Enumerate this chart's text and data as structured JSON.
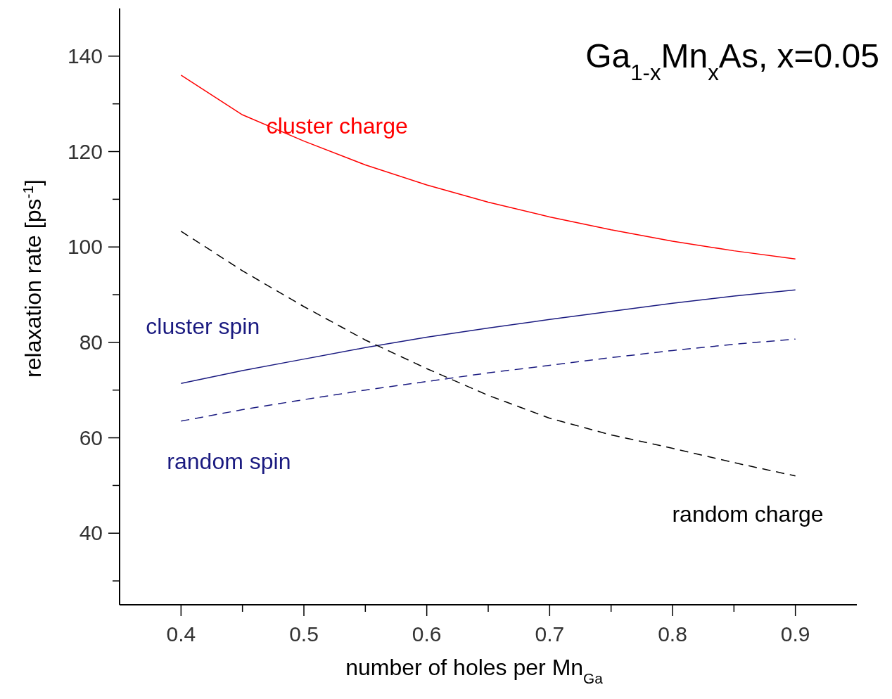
{
  "chart_data": {
    "type": "line",
    "title": "Ga$_{1-x}$Mn$_{x}$As,  x=0.05",
    "xlabel": "number of holes per Mn$_{Ga}$",
    "ylabel": "relaxation rate  [ps$^{-1}$]",
    "x": [
      0.4,
      0.45,
      0.5,
      0.55,
      0.6,
      0.65,
      0.7,
      0.75,
      0.8,
      0.85,
      0.9
    ],
    "series": [
      {
        "name": "cluster charge",
        "color": "#ff0000",
        "line_style": "solid",
        "values": [
          136,
          127.7,
          122.2,
          117.2,
          113,
          109.4,
          106.3,
          103.6,
          101.2,
          99.2,
          97.5
        ]
      },
      {
        "name": "cluster spin",
        "color": "#1a1a80",
        "line_style": "solid",
        "values": [
          71.4,
          74.1,
          76.5,
          78.9,
          81.1,
          83,
          84.8,
          86.5,
          88.2,
          89.7,
          91
        ]
      },
      {
        "name": "random spin",
        "color": "#1a1a80",
        "line_style": "dashed",
        "values": [
          63.5,
          65.9,
          68,
          70,
          71.8,
          73.6,
          75.2,
          76.8,
          78.3,
          79.6,
          80.7
        ]
      },
      {
        "name": "random charge",
        "color": "#000000",
        "line_style": "dashed",
        "values": [
          103.3,
          95,
          87.5,
          80.5,
          74.5,
          68.9,
          64.1,
          60.6,
          57.8,
          54.8,
          52
        ]
      }
    ],
    "xlim": [
      0.35,
      0.95
    ],
    "ylim": [
      25,
      150
    ],
    "xticks": [
      0.4,
      {
        "value": 0.45,
        "label": null
      },
      0.5,
      {
        "value": 0.55,
        "label": null
      },
      0.6,
      {
        "value": 0.65,
        "label": null
      },
      0.7,
      {
        "value": 0.75,
        "label": null
      },
      0.8,
      {
        "value": 0.85,
        "label": null
      },
      0.9
    ],
    "yticks": [
      {
        "value": 30,
        "label": null
      },
      40,
      {
        "value": 50,
        "label": null
      },
      60,
      {
        "value": 70,
        "label": null
      },
      80,
      {
        "value": 90,
        "label": null
      },
      100,
      {
        "value": 110,
        "label": null
      },
      120,
      {
        "value": 130,
        "label": null
      },
      140
    ],
    "grid": false,
    "legend": false
  }
}
